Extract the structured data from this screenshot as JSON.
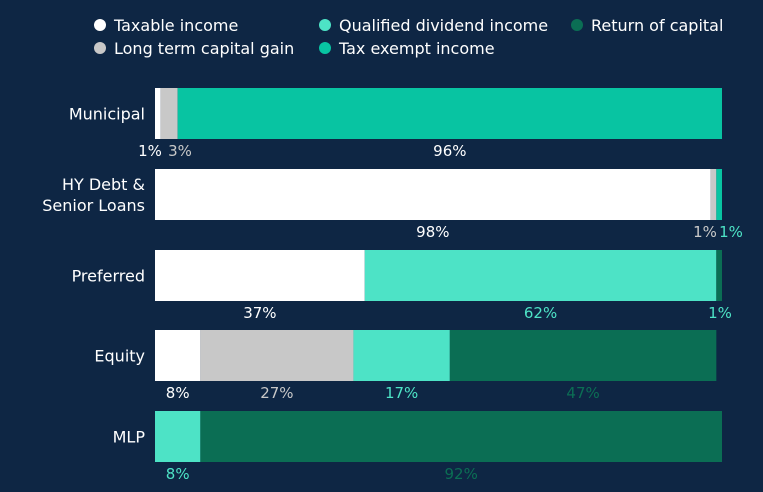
{
  "chart_data": {
    "type": "bar",
    "orientation": "horizontal",
    "stacked": true,
    "title": "",
    "xlabel": "",
    "ylabel": "",
    "xlim": [
      0,
      100
    ],
    "grid": false,
    "legend_position": "top",
    "categories": [
      [
        "Municipal"
      ],
      [
        "HY Debt &",
        "Senior Loans"
      ],
      [
        "Preferred"
      ],
      [
        "Equity"
      ],
      [
        "MLP"
      ]
    ],
    "series": [
      {
        "name": "Taxable income",
        "color": "#ffffff",
        "values": [
          1,
          98,
          37,
          8,
          0
        ],
        "label_color": "#ffffff"
      },
      {
        "name": "Long term capital gain",
        "color": "#c8c8c8",
        "values": [
          3,
          1,
          0,
          27,
          0
        ],
        "label_color": "#c8c8c8"
      },
      {
        "name": "Qualified dividend income",
        "color": "#4de3c6",
        "values": [
          0,
          0,
          62,
          17,
          8
        ],
        "label_color": "#4de3c6"
      },
      {
        "name": "Tax exempt income",
        "color": "#08c4a2",
        "values": [
          96,
          1,
          0,
          0,
          0
        ],
        "label_color": "#ffffff"
      },
      {
        "name": "Return of capital",
        "color": "#0b6e54",
        "values": [
          0,
          0,
          1,
          47,
          92
        ],
        "label_color": "#0b6e54"
      }
    ],
    "data_labels": [
      [
        {
          "text": "1%",
          "series": 0,
          "color": "#ffffff"
        },
        {
          "text": "3%",
          "series": 1,
          "color": "#c8c8c8"
        },
        {
          "text": "96%",
          "series": 3,
          "color": "#ffffff"
        }
      ],
      [
        {
          "text": "98%",
          "series": 0,
          "color": "#ffffff"
        },
        {
          "text": "1%",
          "series": 1,
          "color": "#c8c8c8",
          "align": "end"
        },
        {
          "text": "1%",
          "series": 3,
          "color": "#4de3c6",
          "align": "end"
        }
      ],
      [
        {
          "text": "37%",
          "series": 0,
          "color": "#ffffff"
        },
        {
          "text": "62%",
          "series": 2,
          "color": "#4de3c6"
        },
        {
          "text": "1%",
          "series": 4,
          "color": "#4de3c6",
          "align": "end"
        }
      ],
      [
        {
          "text": "8%",
          "series": 0,
          "color": "#ffffff"
        },
        {
          "text": "27%",
          "series": 1,
          "color": "#c8c8c8"
        },
        {
          "text": "17%",
          "series": 2,
          "color": "#4de3c6"
        },
        {
          "text": "47%",
          "series": 4,
          "color": "#0b6e54"
        }
      ],
      [
        {
          "text": "8%",
          "series": 2,
          "color": "#4de3c6"
        },
        {
          "text": "92%",
          "series": 4,
          "color": "#0b6e54"
        }
      ]
    ],
    "legend_entries": [
      {
        "name": "Taxable income",
        "color": "#ffffff"
      },
      {
        "name": "Qualified dividend income",
        "color": "#4de3c6"
      },
      {
        "name": "Return of capital",
        "color": "#0b6e54"
      },
      {
        "name": "Long term capital gain",
        "color": "#c8c8c8"
      },
      {
        "name": "Tax exempt income",
        "color": "#08c4a2"
      }
    ]
  }
}
